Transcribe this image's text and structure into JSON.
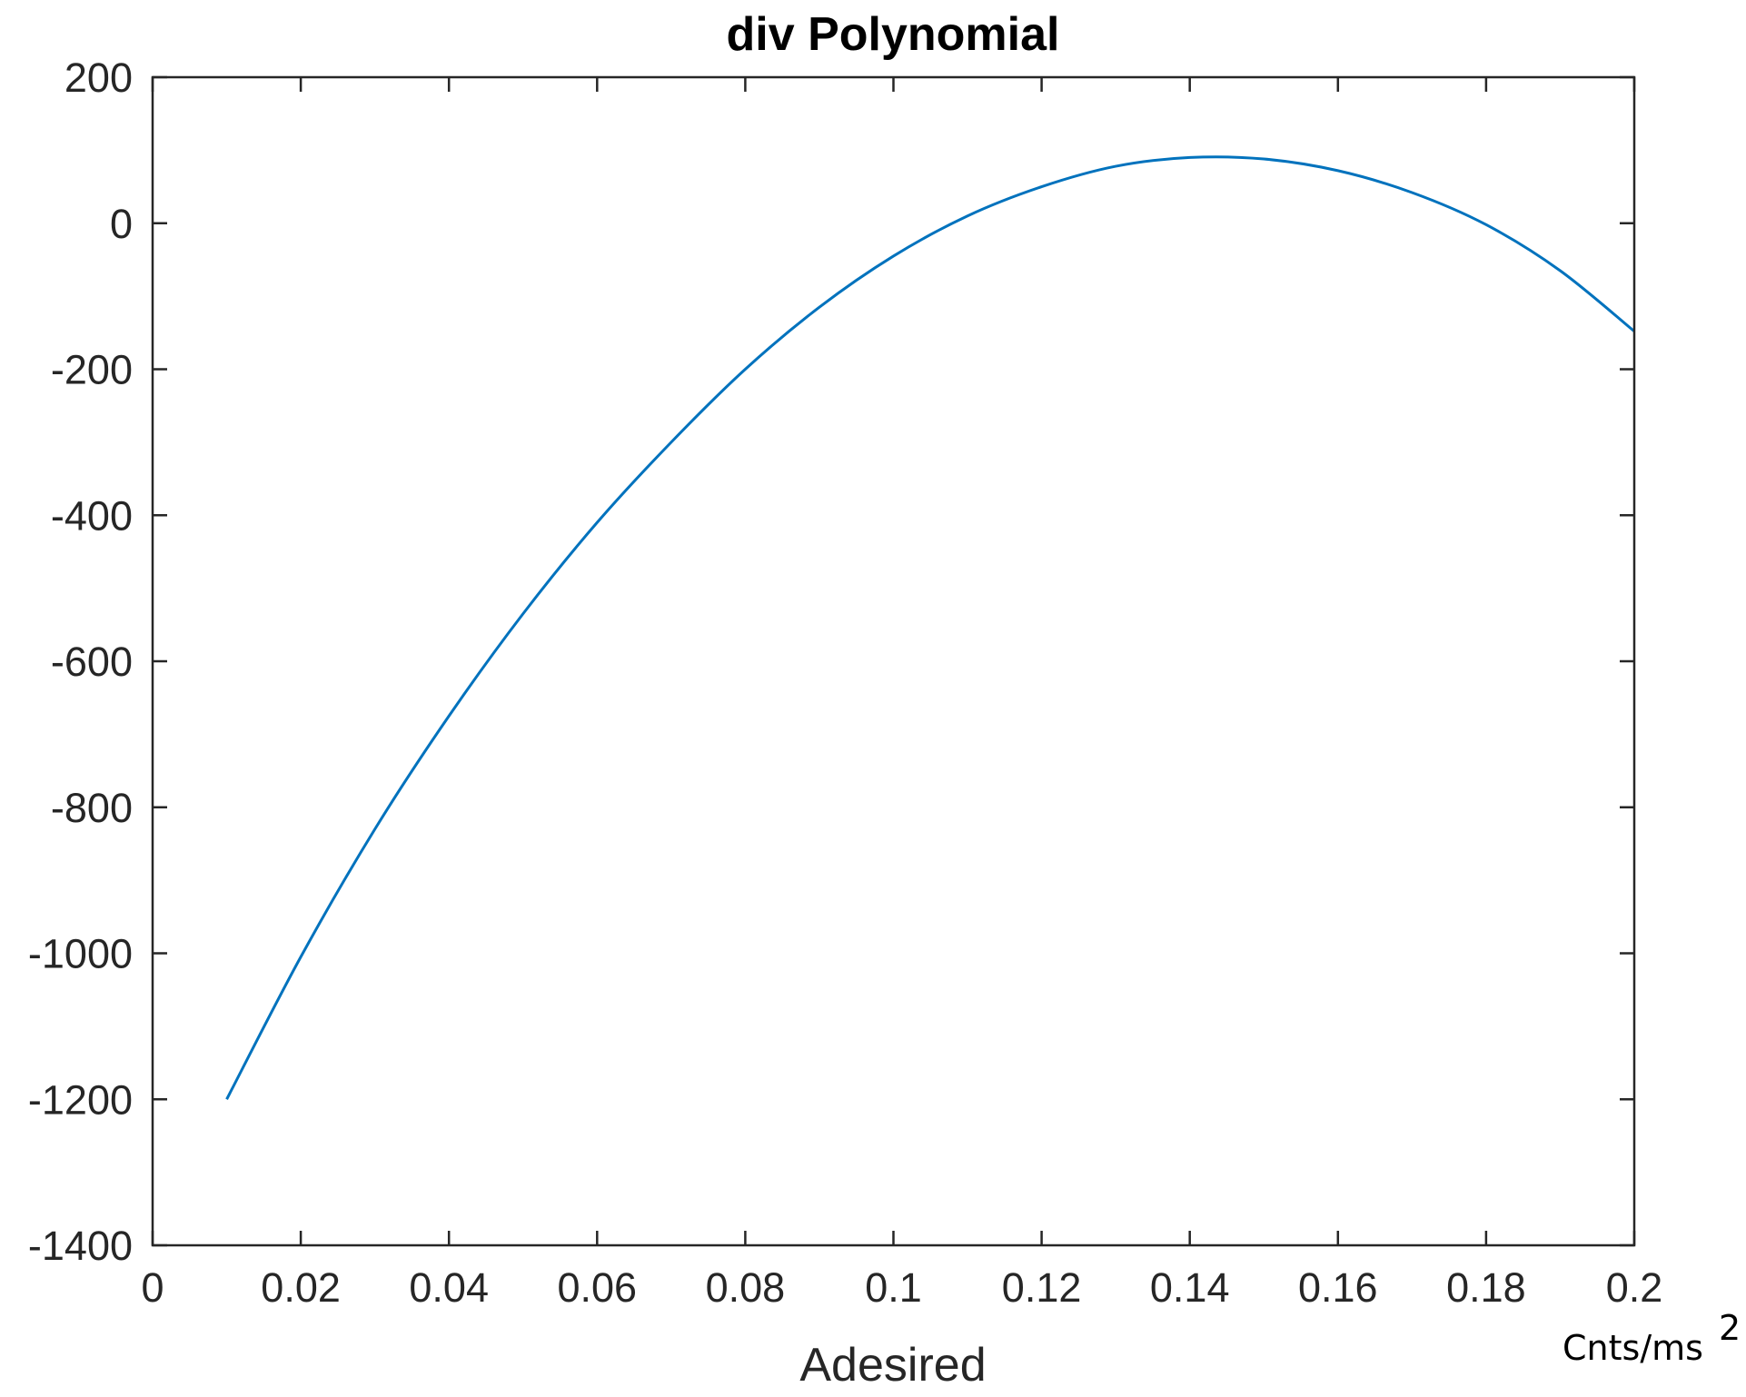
{
  "chart_data": {
    "type": "line",
    "title": "div Polynomial",
    "xlabel": "Adesired",
    "ylabel": "",
    "x_unit": "Cnts/ms",
    "x_unit_exponent": "2",
    "xlim": [
      0,
      0.2
    ],
    "ylim": [
      -1400,
      200
    ],
    "xticks": [
      0,
      0.02,
      0.04,
      0.06,
      0.08,
      0.1,
      0.12,
      0.14,
      0.16,
      0.18,
      0.2
    ],
    "xtick_labels": [
      "0",
      "0.02",
      "0.04",
      "0.06",
      "0.08",
      "0.1",
      "0.12",
      "0.14",
      "0.16",
      "0.18",
      "0.2"
    ],
    "yticks": [
      200,
      0,
      -200,
      -400,
      -600,
      -800,
      -1000,
      -1200,
      -1400
    ],
    "ytick_labels": [
      "200",
      "0",
      "-200",
      "-400",
      "-600",
      "-800",
      "-1000",
      "-1200",
      "-1400"
    ],
    "grid": false,
    "box": true,
    "series": [
      {
        "color": "#0072BD",
        "x": [
          0.01,
          0.02,
          0.03,
          0.04,
          0.05,
          0.06,
          0.07,
          0.08,
          0.09,
          0.1,
          0.11,
          0.12,
          0.13,
          0.14,
          0.15,
          0.16,
          0.17,
          0.18,
          0.19,
          0.2
        ],
        "y": [
          -1200,
          -1005,
          -830,
          -675,
          -535,
          -410,
          -300,
          -200,
          -115,
          -45,
          10,
          50,
          78,
          90,
          88,
          72,
          42,
          -2,
          -65,
          -148
        ]
      }
    ]
  }
}
